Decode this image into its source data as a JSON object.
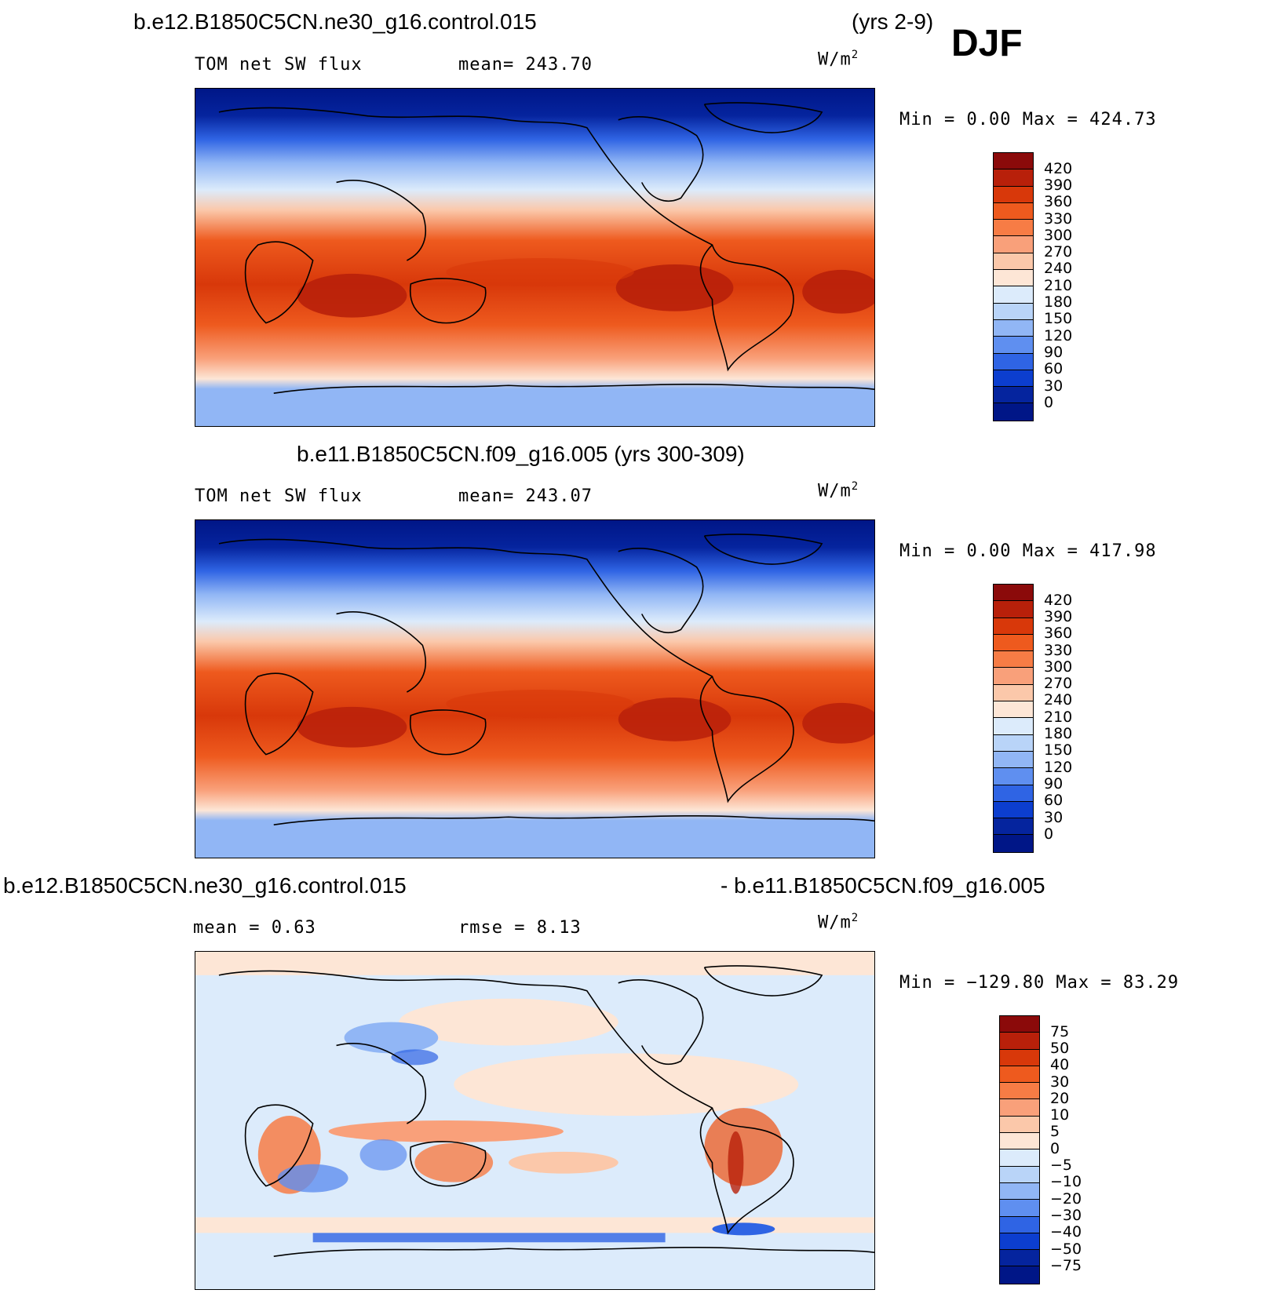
{
  "header": {
    "case1": "b.e12.B1850C5CN.ne30_g16.control.015",
    "years1": "(yrs 2-9)",
    "season": "DJF",
    "case2": "b.e11.B1850C5CN.f09_g16.005 (yrs 300-309)",
    "diff_left": "b.e12.B1850C5CN.ne30_g16.control.015",
    "diff_right": "- b.e11.B1850C5CN.f09_g16.005"
  },
  "panels": [
    {
      "field": "TOM net SW flux",
      "stat": "mean= 243.70",
      "units": "W/m",
      "units_sup": "2",
      "range": "Min =     0.00 Max =  424.73"
    },
    {
      "field": "TOM net SW flux",
      "stat": "mean= 243.07",
      "units": "W/m",
      "units_sup": "2",
      "range": "Min =     0.00 Max =  417.98"
    },
    {
      "field": "mean =    0.63",
      "stat": "rmse =    8.13",
      "units": "W/m",
      "units_sup": "2",
      "range": "Min = −129.80 Max =   83.29"
    }
  ],
  "colorbars": {
    "abs": {
      "labels": [
        "420",
        "390",
        "360",
        "330",
        "300",
        "270",
        "240",
        "210",
        "180",
        "150",
        "120",
        "90",
        "60",
        "30",
        "0"
      ],
      "colors": [
        "#8b0a0a",
        "#b8200a",
        "#d8380a",
        "#ee5a1e",
        "#f77c45",
        "#f9a07a",
        "#fbc8aa",
        "#fde6d6",
        "#dcebfb",
        "#b9d4f8",
        "#91b6f5",
        "#5f8ff0",
        "#2f64e4",
        "#0c3ecf",
        "#05249e",
        "#001687"
      ]
    },
    "diff": {
      "labels": [
        "75",
        "50",
        "40",
        "30",
        "20",
        "10",
        "5",
        "0",
        "−5",
        "−10",
        "−20",
        "−30",
        "−40",
        "−50",
        "−75"
      ],
      "colors": [
        "#8b0a0a",
        "#b8200a",
        "#d8380a",
        "#ee5a1e",
        "#f77c45",
        "#f9a07a",
        "#fbc8aa",
        "#fde6d6",
        "#dcebfb",
        "#b9d4f8",
        "#91b6f5",
        "#5f8ff0",
        "#2f64e4",
        "#0c3ecf",
        "#05249e",
        "#001687"
      ]
    }
  }
}
